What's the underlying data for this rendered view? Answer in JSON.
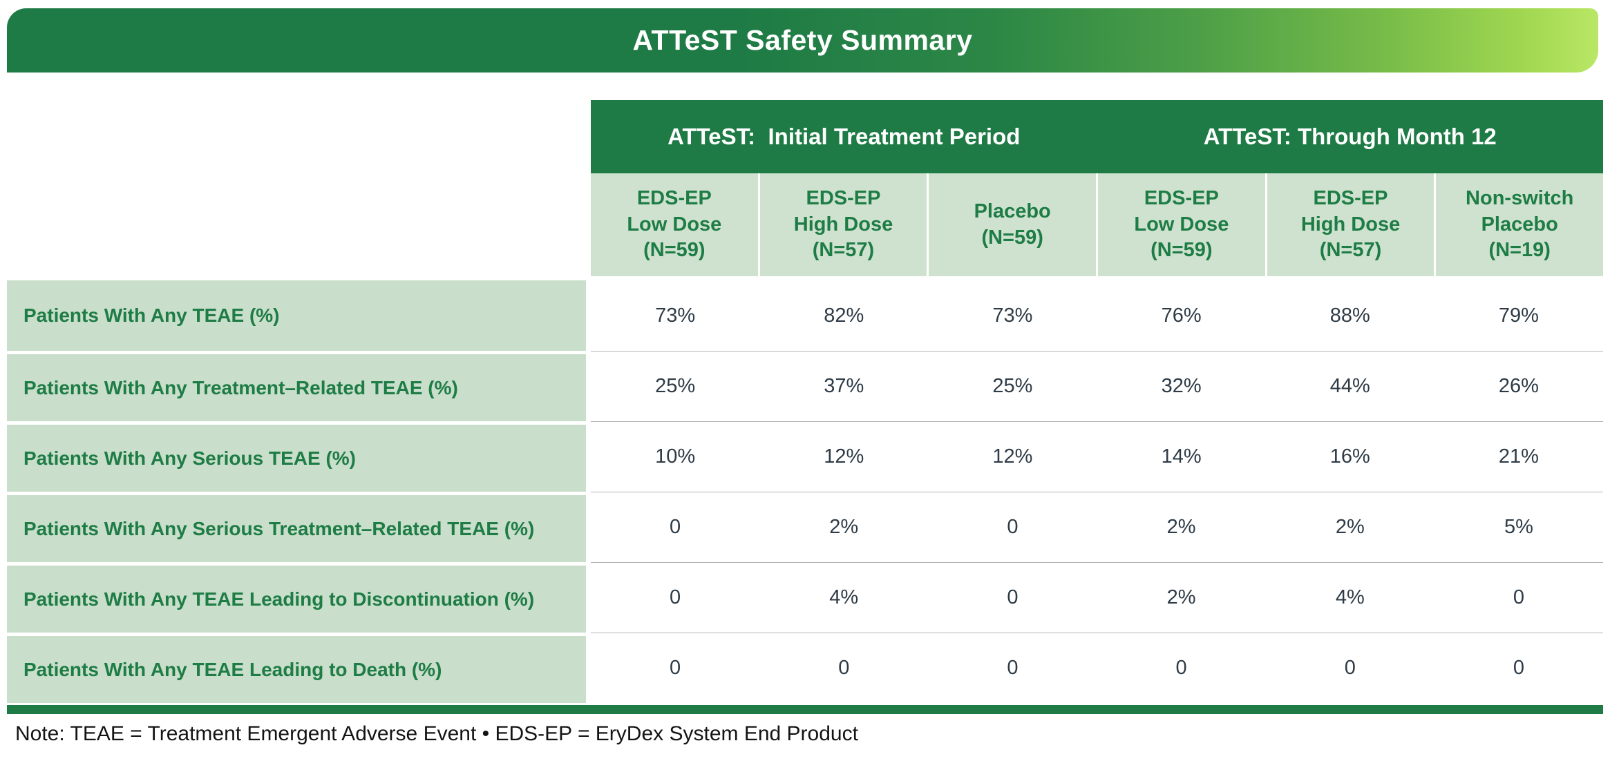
{
  "title": "ATTeST Safety Summary",
  "note": "Note: TEAE = Treatment Emergent Adverse Event • EDS-EP = EryDex System End Product",
  "colors": {
    "header_green": "#1e7b45",
    "gradient_end_lime": "#b9e765",
    "column_header_bg": "#cfe2d0",
    "row_label_bg": "#c9decb",
    "green_text": "#1e7c45",
    "value_text": "#2e3b46"
  },
  "table": {
    "groups": [
      {
        "label": "ATTeST:  Initial Treatment Period"
      },
      {
        "label": "ATTeST: Through Month 12"
      }
    ],
    "columns": [
      {
        "label": "EDS-EP\nLow Dose\n(N=59)"
      },
      {
        "label": "EDS-EP\nHigh Dose\n(N=57)"
      },
      {
        "label": "Placebo\n(N=59)"
      },
      {
        "label": "EDS-EP\nLow Dose\n(N=59)"
      },
      {
        "label": "EDS-EP\nHigh Dose\n(N=57)"
      },
      {
        "label": "Non-switch\nPlacebo\n(N=19)"
      }
    ],
    "rows": [
      {
        "label": "Patients With Any TEAE (%)",
        "values": [
          "73%",
          "82%",
          "73%",
          "76%",
          "88%",
          "79%"
        ]
      },
      {
        "label": "Patients With Any Treatment–Related TEAE (%)",
        "values": [
          "25%",
          "37%",
          "25%",
          "32%",
          "44%",
          "26%"
        ]
      },
      {
        "label": "Patients With Any Serious TEAE (%)",
        "values": [
          "10%",
          "12%",
          "12%",
          "14%",
          "16%",
          "21%"
        ]
      },
      {
        "label": "Patients With Any Serious Treatment–Related TEAE (%)",
        "values": [
          "0",
          "2%",
          "0",
          "2%",
          "2%",
          "5%"
        ]
      },
      {
        "label": "Patients With Any TEAE Leading to Discontinuation (%)",
        "values": [
          "0",
          "4%",
          "0",
          "2%",
          "4%",
          "0"
        ]
      },
      {
        "label": "Patients With Any TEAE Leading to Death (%)",
        "values": [
          "0",
          "0",
          "0",
          "0",
          "0",
          "0"
        ]
      }
    ]
  }
}
